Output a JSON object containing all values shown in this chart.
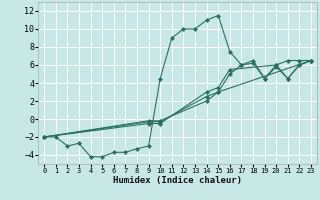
{
  "xlabel": "Humidex (Indice chaleur)",
  "xlim": [
    -0.5,
    23.5
  ],
  "ylim": [
    -5,
    13
  ],
  "background_color": "#c8e8e8",
  "grid_color": "#ffffff",
  "line_color": "#2a7060",
  "xticks": [
    0,
    1,
    2,
    3,
    4,
    5,
    6,
    7,
    8,
    9,
    10,
    11,
    12,
    13,
    14,
    15,
    16,
    17,
    18,
    19,
    20,
    21,
    22,
    23
  ],
  "yticks": [
    -4,
    -2,
    0,
    2,
    4,
    6,
    8,
    10,
    12
  ],
  "series": [
    {
      "x": [
        0,
        1,
        2,
        3,
        4,
        5,
        6,
        7,
        8,
        9,
        10,
        11,
        12,
        13,
        14,
        15,
        16,
        17,
        18,
        19,
        20,
        21,
        22,
        23
      ],
      "y": [
        -2,
        -2,
        -3,
        -2.7,
        -4.2,
        -4.2,
        -3.7,
        -3.7,
        -3.3,
        -3.0,
        4.5,
        9.0,
        10.0,
        10.0,
        11.0,
        11.5,
        7.5,
        6.0,
        6.5,
        4.5,
        6.0,
        6.5,
        6.5,
        6.5
      ]
    },
    {
      "x": [
        0,
        9,
        10,
        14,
        15,
        16,
        20,
        21,
        22,
        23
      ],
      "y": [
        -2,
        -0.5,
        -0.5,
        3.0,
        3.5,
        5.5,
        6.0,
        4.5,
        6.0,
        6.5
      ]
    },
    {
      "x": [
        0,
        9,
        10,
        14,
        15,
        23
      ],
      "y": [
        -2,
        -0.3,
        -0.3,
        2.5,
        3.0,
        6.5
      ]
    },
    {
      "x": [
        0,
        9,
        10,
        14,
        15,
        16,
        17,
        18,
        19,
        20,
        21,
        22,
        23
      ],
      "y": [
        -2,
        -0.2,
        -0.2,
        2.0,
        3.0,
        5.0,
        6.0,
        6.2,
        4.5,
        5.8,
        4.5,
        6.0,
        6.5
      ]
    }
  ]
}
